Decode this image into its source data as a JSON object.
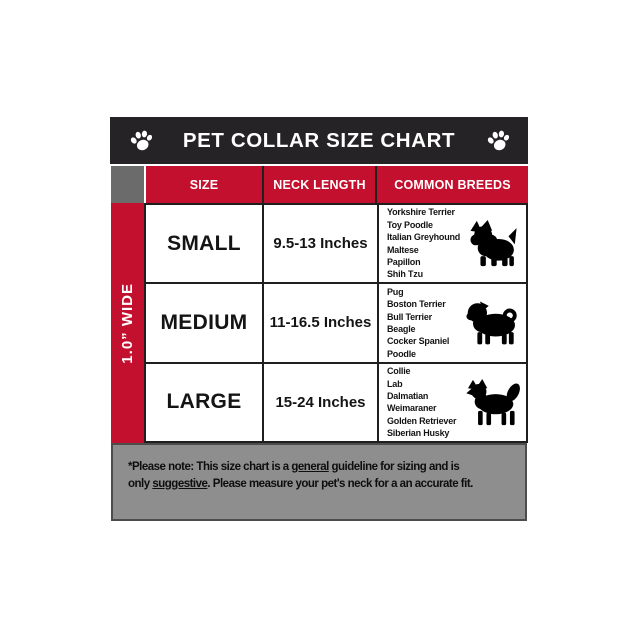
{
  "title_bar": {
    "title": "PET COLLAR SIZE CHART"
  },
  "side_label": "1.0” WIDE",
  "table": {
    "headers": {
      "size": "SIZE",
      "neck": "NECK LENGTH",
      "breeds": "COMMON BREEDS"
    },
    "rows": [
      {
        "size": "SMALL",
        "neck": "9.5-13 Inches",
        "breeds": [
          "Yorkshire Terrier",
          "Toy Poodle",
          "Italian Greyhound",
          "Maltese",
          "Papillon",
          "Shih Tzu"
        ],
        "icon": "yorkie-silhouette"
      },
      {
        "size": "MEDIUM",
        "neck": "11-16.5 Inches",
        "breeds": [
          "Pug",
          "Boston Terrier",
          "Bull Terrier",
          "Beagle",
          "Cocker Spaniel",
          "Poodle"
        ],
        "icon": "pug-silhouette"
      },
      {
        "size": "LARGE",
        "neck": "15-24 Inches",
        "breeds": [
          "Collie",
          "Lab",
          "Dalmatian",
          "Weimaraner",
          "Golden Retriever",
          "Siberian Husky"
        ],
        "icon": "husky-silhouette"
      }
    ]
  },
  "footer": {
    "lines": [
      [
        {
          "t": "*Please note: This size chart is a "
        },
        {
          "t": "general",
          "u": true
        },
        {
          "t": " guideline for sizing and is"
        }
      ],
      [
        {
          "t": "only "
        },
        {
          "t": "suggestive",
          "u": true
        },
        {
          "t": ". Please measure your pet's neck for a an accurate fit."
        }
      ]
    ]
  },
  "icons": {
    "title_left": "paw-icon",
    "title_right": "paw-icon"
  },
  "colors": {
    "red": "#c3102e",
    "dark_bar": "#262326",
    "corner_gray": "#6b6b6b",
    "footer_gray": "#8e8e8e",
    "grid_line": "#1f1f1f",
    "text": "#141414"
  },
  "chart_data": {
    "type": "table",
    "title": "PET COLLAR SIZE CHART",
    "columns": [
      "SIZE",
      "NECK LENGTH",
      "COMMON BREEDS"
    ],
    "rows": [
      [
        "SMALL",
        "9.5-13 Inches",
        "Yorkshire Terrier, Toy Poodle, Italian Greyhound, Maltese, Papillon, Shih Tzu"
      ],
      [
        "MEDIUM",
        "11-16.5 Inches",
        "Pug, Boston Terrier, Bull Terrier, Beagle, Cocker Spaniel, Poodle"
      ],
      [
        "LARGE",
        "15-24 Inches",
        "Collie, Lab, Dalmatian, Weimaraner, Golden Retriever, Siberian Husky"
      ]
    ],
    "annotations": [
      "1.0” WIDE",
      "*Please note: This size chart is a general guideline for sizing and is only suggestive. Please measure your pet's neck for a an accurate fit."
    ]
  }
}
